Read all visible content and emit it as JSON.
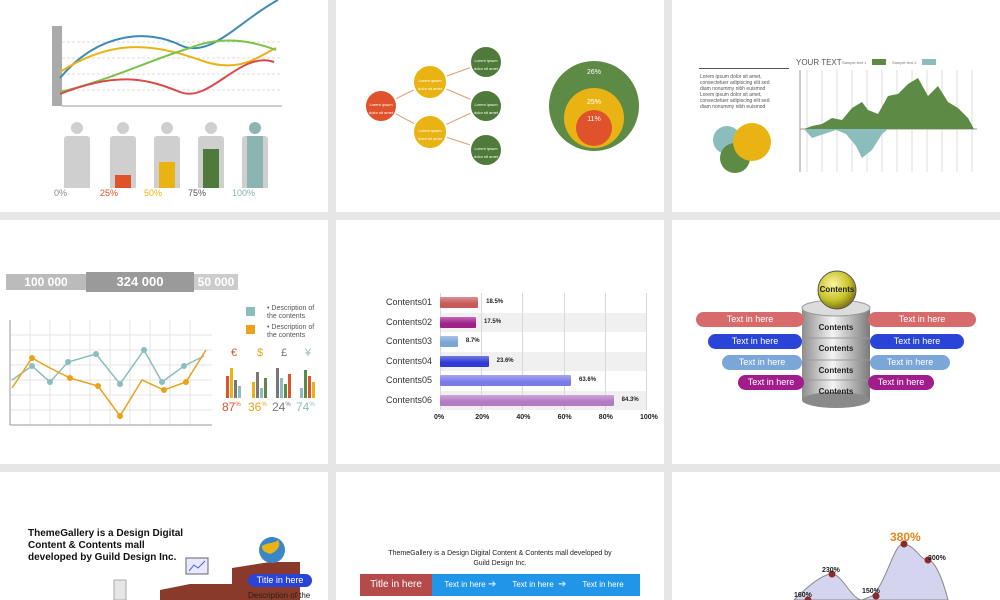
{
  "tile1": {
    "people": [
      {
        "label": "0%",
        "fill": 0.0,
        "color": "#cfcfcf"
      },
      {
        "label": "25%",
        "fill": 0.25,
        "color": "#e0522b"
      },
      {
        "label": "50%",
        "fill": 0.5,
        "color": "#e9b413"
      },
      {
        "label": "75%",
        "fill": 0.75,
        "color": "#4f7a3a"
      },
      {
        "label": "100%",
        "fill": 1.0,
        "color": "#8bb5b2"
      }
    ],
    "label_colors": [
      "#888888",
      "#e0522b",
      "#e9b413",
      "#555555",
      "#8bb5b2"
    ]
  },
  "tile2": {
    "node_text": "Lorem ipsum dolor sit amet",
    "rings": [
      {
        "label": "26%",
        "color": "#5d8a44"
      },
      {
        "label": "25%",
        "color": "#e9b413"
      },
      {
        "label": "11%",
        "color": "#e0522b"
      }
    ]
  },
  "tile3": {
    "title": "YOUR TEXT",
    "legend": [
      {
        "name": "Sample text 1",
        "color": "#5d8a44"
      },
      {
        "name": "Sample text 2",
        "color": "#8bbdbd"
      }
    ],
    "body_lines": [
      "Lorem ipsum dolor sit amet,",
      "consectetuer adipiscing elit sed",
      "diam nonummy nibh euismod",
      "Lorem ipsum dolor sit amet,",
      "consectetuer adipiscing elit sed",
      "diam nonummy nibh euismod"
    ]
  },
  "tile4": {
    "bands": [
      "100 000",
      "324 000",
      "50 000"
    ],
    "legend": [
      {
        "text": "• Description of the contents",
        "color": "#8bbdbd"
      },
      {
        "text": "• Description of the contents",
        "color": "#e9a21a"
      }
    ],
    "currencies": [
      {
        "symbol": "€",
        "value": "87",
        "unit": "%",
        "color": "#e0522b"
      },
      {
        "symbol": "$",
        "value": "36",
        "unit": "%",
        "color": "#e9a21a"
      },
      {
        "symbol": "£",
        "value": "24",
        "unit": "%",
        "color": "#777777"
      },
      {
        "symbol": "¥",
        "value": "74",
        "unit": "%",
        "color": "#8bbdbd"
      }
    ]
  },
  "chart_data": {
    "type": "bar",
    "orientation": "horizontal",
    "categories": [
      "Contents01",
      "Contents02",
      "Contents03",
      "Contents04",
      "Contents05",
      "Contents06"
    ],
    "values": [
      18.5,
      17.5,
      8.7,
      23.6,
      63.6,
      84.3
    ],
    "value_labels": [
      "18.5%",
      "17.5%",
      "8.7%",
      "23.6%",
      "63.6%",
      "84.3%"
    ],
    "colors": [
      "#c95a5a",
      "#a0208a",
      "#7aa6d8",
      "#2e3ad6",
      "#7a7be8",
      "#b37bc4"
    ],
    "xlim": [
      0,
      100
    ],
    "xticks": [
      "0%",
      "20%",
      "40%",
      "60%",
      "80%",
      "100%"
    ]
  },
  "tile6": {
    "top": "Contents",
    "layers": [
      "Contents",
      "Contents",
      "Contents",
      "Contents"
    ],
    "left": [
      {
        "text": "Text in here",
        "color": "#d76b6b"
      },
      {
        "text": "Text in here",
        "color": "#2a44d8"
      },
      {
        "text": "Text in here",
        "color": "#7aa6d8"
      },
      {
        "text": "Text in here",
        "color": "#a21d8c"
      }
    ],
    "right": [
      {
        "text": "Text in here",
        "color": "#d76b6b"
      },
      {
        "text": "Text in here",
        "color": "#2a44d8"
      },
      {
        "text": "Text in here",
        "color": "#7aa6d8"
      },
      {
        "text": "Text in here",
        "color": "#a21d8c"
      }
    ]
  },
  "tile7": {
    "heading": [
      "ThemeGallery is a Design Digital",
      "Content & Contents mall",
      "developed by Guild Design Inc."
    ],
    "pill": "Title in here",
    "desc": "Description of the"
  },
  "tile8": {
    "heading": [
      "ThemeGallery  is a Design Digital Content & Contents mall developed by",
      "Guild Design Inc."
    ],
    "steps": [
      "Title in here",
      "Text in here",
      "Text in here",
      "Text in here"
    ]
  },
  "tile9": {
    "peaks": [
      "160%",
      "230%",
      "150%",
      "380%",
      "300%"
    ]
  }
}
